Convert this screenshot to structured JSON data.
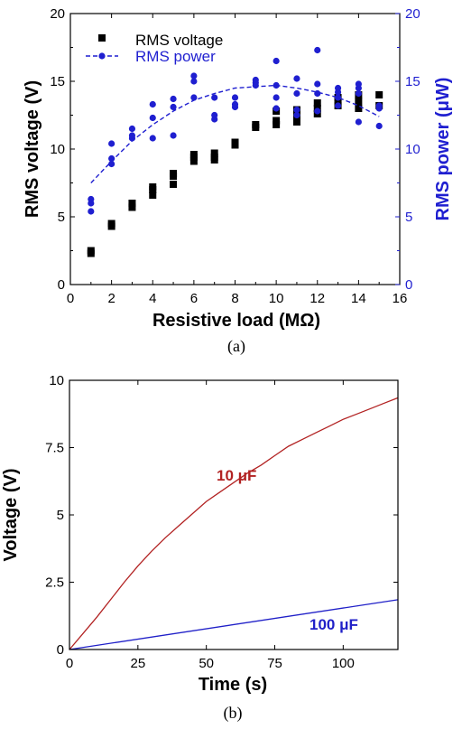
{
  "chart_data": [
    {
      "type": "scatter",
      "caption": "(a)",
      "xlabel": "Resistive load (MΩ)",
      "ylabel_left": "RMS voltage (V)",
      "ylabel_right": "RMS power (μW)",
      "xlim": [
        0,
        16
      ],
      "ylim_left": [
        0,
        20
      ],
      "ylim_right": [
        0,
        20
      ],
      "x_ticks": [
        "0",
        "2",
        "4",
        "6",
        "8",
        "10",
        "12",
        "14",
        "16"
      ],
      "y_ticks_left": [
        "0",
        "5",
        "10",
        "15",
        "20"
      ],
      "y_ticks_right": [
        "0",
        "5",
        "10",
        "15",
        "20"
      ],
      "legend_position": "top-left",
      "series": [
        {
          "name": "RMS voltage",
          "marker": "square",
          "color": "#000000",
          "axis": "left",
          "points": [
            [
              1,
              2.3
            ],
            [
              1,
              2.5
            ],
            [
              2,
              4.3
            ],
            [
              2,
              4.5
            ],
            [
              3,
              5.7
            ],
            [
              3,
              6.0
            ],
            [
              4,
              6.6
            ],
            [
              4,
              7.0
            ],
            [
              4,
              7.2
            ],
            [
              5,
              7.4
            ],
            [
              5,
              8.0
            ],
            [
              5,
              8.2
            ],
            [
              6,
              9.1
            ],
            [
              6,
              9.4
            ],
            [
              6,
              9.6
            ],
            [
              7,
              9.2
            ],
            [
              7,
              9.4
            ],
            [
              7,
              9.7
            ],
            [
              8,
              10.3
            ],
            [
              8,
              10.5
            ],
            [
              9,
              11.6
            ],
            [
              9,
              11.8
            ],
            [
              10,
              11.8
            ],
            [
              10,
              12.1
            ],
            [
              10,
              12.8
            ],
            [
              11,
              12.0
            ],
            [
              11,
              12.5
            ],
            [
              11,
              12.9
            ],
            [
              12,
              12.6
            ],
            [
              12,
              13.0
            ],
            [
              12,
              13.4
            ],
            [
              13,
              13.2
            ],
            [
              13,
              13.5
            ],
            [
              13,
              13.8
            ],
            [
              14,
              13.0
            ],
            [
              14,
              13.5
            ],
            [
              14,
              14.0
            ],
            [
              15,
              13.2
            ],
            [
              15,
              14.0
            ]
          ]
        },
        {
          "name": "RMS power",
          "marker": "circle",
          "color": "#1f1fd0",
          "axis": "right",
          "points": [
            [
              1,
              5.4
            ],
            [
              1,
              6.0
            ],
            [
              1,
              6.3
            ],
            [
              2,
              8.9
            ],
            [
              2,
              9.3
            ],
            [
              2,
              10.4
            ],
            [
              3,
              10.8
            ],
            [
              3,
              11.0
            ],
            [
              3,
              11.5
            ],
            [
              4,
              10.8
            ],
            [
              4,
              12.3
            ],
            [
              4,
              13.3
            ],
            [
              5,
              11.0
            ],
            [
              5,
              13.1
            ],
            [
              5,
              13.7
            ],
            [
              6,
              13.8
            ],
            [
              6,
              15.0
            ],
            [
              6,
              15.4
            ],
            [
              7,
              12.2
            ],
            [
              7,
              12.5
            ],
            [
              7,
              13.8
            ],
            [
              8,
              13.1
            ],
            [
              8,
              13.3
            ],
            [
              8,
              13.8
            ],
            [
              9,
              14.9
            ],
            [
              9,
              15.1
            ],
            [
              9,
              14.7
            ],
            [
              10,
              13.0
            ],
            [
              10,
              13.8
            ],
            [
              10,
              14.7
            ],
            [
              10,
              16.5
            ],
            [
              11,
              12.5
            ],
            [
              11,
              12.9
            ],
            [
              11,
              14.1
            ],
            [
              11,
              15.2
            ],
            [
              12,
              12.8
            ],
            [
              12,
              14.1
            ],
            [
              12,
              14.8
            ],
            [
              12,
              17.3
            ],
            [
              13,
              13.2
            ],
            [
              13,
              13.8
            ],
            [
              13,
              14.2
            ],
            [
              13,
              14.5
            ],
            [
              14,
              12.0
            ],
            [
              14,
              14.1
            ],
            [
              14,
              14.5
            ],
            [
              14,
              14.8
            ],
            [
              15,
              11.7
            ],
            [
              15,
              13.0
            ],
            [
              15,
              13.2
            ]
          ]
        },
        {
          "name": "RMS power",
          "kind": "fit",
          "style": "dashed",
          "color": "#1f1fd0",
          "axis": "right",
          "x": [
            1,
            2,
            3,
            4,
            5,
            6,
            7,
            8,
            9,
            10,
            11,
            12,
            13,
            14,
            15
          ],
          "y": [
            7.5,
            9.1,
            10.6,
            11.8,
            12.8,
            13.6,
            14.1,
            14.5,
            14.6,
            14.7,
            14.5,
            14.2,
            13.8,
            13.2,
            12.4
          ]
        }
      ]
    },
    {
      "type": "line",
      "caption": "(b)",
      "xlabel": "Time (s)",
      "ylabel": "Voltage (V)",
      "xlim": [
        0,
        120
      ],
      "ylim": [
        0,
        10
      ],
      "x_ticks": [
        "0",
        "25",
        "50",
        "75",
        "100"
      ],
      "y_ticks": [
        "0",
        "2.5",
        "5",
        "7.5",
        "10"
      ],
      "series": [
        {
          "name": "10 μF",
          "color": "#b22222",
          "x": [
            0,
            5,
            10,
            15,
            20,
            25,
            30,
            35,
            40,
            45,
            50,
            55,
            60,
            65,
            70,
            75,
            80,
            85,
            90,
            95,
            100,
            105,
            110,
            115,
            120
          ],
          "y": [
            0,
            0.6,
            1.2,
            1.85,
            2.5,
            3.1,
            3.65,
            4.15,
            4.6,
            5.05,
            5.5,
            5.85,
            6.2,
            6.55,
            6.85,
            7.2,
            7.55,
            7.8,
            8.05,
            8.3,
            8.55,
            8.75,
            8.95,
            9.15,
            9.35
          ]
        },
        {
          "name": "100 μF",
          "color": "#2020c8",
          "x": [
            0,
            120
          ],
          "y": [
            0,
            1.85
          ]
        }
      ]
    }
  ]
}
